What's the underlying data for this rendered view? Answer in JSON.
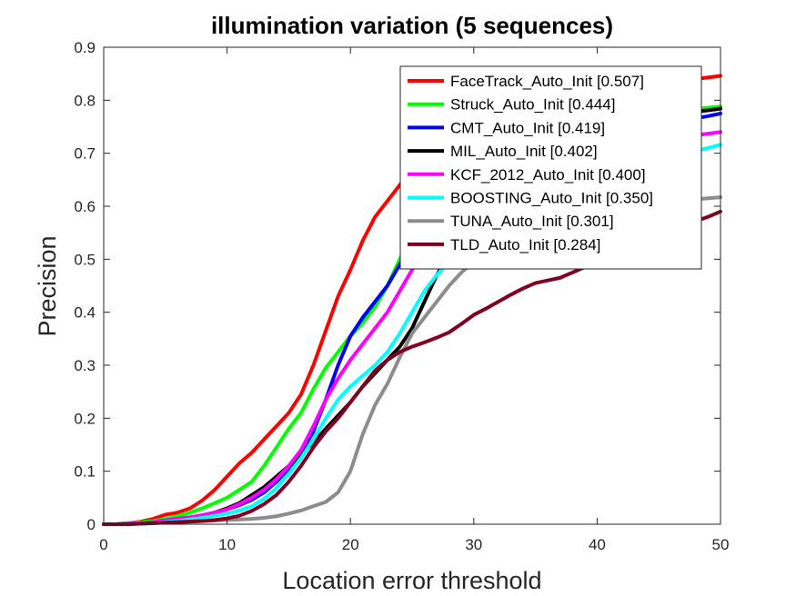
{
  "chart_data": {
    "type": "line",
    "title": "illumination variation (5 sequences)",
    "xlabel": "Location error threshold",
    "ylabel": "Precision",
    "xlim": [
      0,
      50
    ],
    "ylim": [
      0,
      0.9
    ],
    "xticks": [
      "0",
      "10",
      "20",
      "30",
      "40",
      "50"
    ],
    "yticks": [
      "0",
      "0.1",
      "0.2",
      "0.3",
      "0.4",
      "0.5",
      "0.6",
      "0.7",
      "0.8",
      "0.9"
    ],
    "legend_position": "top-right",
    "grid": false,
    "x": [
      0,
      1,
      2,
      3,
      4,
      5,
      6,
      7,
      8,
      9,
      10,
      11,
      12,
      13,
      14,
      15,
      16,
      17,
      18,
      19,
      20,
      21,
      22,
      23,
      24,
      25,
      26,
      27,
      28,
      29,
      30,
      31,
      32,
      33,
      34,
      35,
      36,
      37,
      38,
      39,
      40,
      41,
      42,
      43,
      44,
      45,
      46,
      47,
      48,
      49,
      50
    ],
    "series": [
      {
        "name": "FaceTrack_Auto_Init [0.507]",
        "color": "#ff0000",
        "values": [
          0,
          0,
          0.002,
          0.005,
          0.01,
          0.018,
          0.022,
          0.03,
          0.045,
          0.065,
          0.09,
          0.115,
          0.135,
          0.16,
          0.185,
          0.21,
          0.245,
          0.3,
          0.365,
          0.43,
          0.48,
          0.535,
          0.58,
          0.61,
          0.64,
          0.665,
          0.685,
          0.7,
          0.715,
          0.725,
          0.735,
          0.745,
          0.755,
          0.762,
          0.77,
          0.778,
          0.785,
          0.79,
          0.796,
          0.802,
          0.808,
          0.813,
          0.818,
          0.822,
          0.826,
          0.83,
          0.834,
          0.837,
          0.84,
          0.843,
          0.846
        ]
      },
      {
        "name": "Struck_Auto_Init [0.444]",
        "color": "#00ff00",
        "values": [
          0,
          0,
          0.002,
          0.004,
          0.006,
          0.01,
          0.015,
          0.022,
          0.03,
          0.04,
          0.05,
          0.065,
          0.08,
          0.11,
          0.145,
          0.18,
          0.21,
          0.255,
          0.295,
          0.325,
          0.355,
          0.38,
          0.41,
          0.45,
          0.5,
          0.545,
          0.58,
          0.605,
          0.625,
          0.645,
          0.66,
          0.675,
          0.69,
          0.7,
          0.71,
          0.72,
          0.728,
          0.736,
          0.744,
          0.75,
          0.755,
          0.76,
          0.765,
          0.769,
          0.772,
          0.775,
          0.778,
          0.781,
          0.783,
          0.786,
          0.788
        ]
      },
      {
        "name": "CMT_Auto_Init [0.419]",
        "color": "#0000ff",
        "values": [
          0,
          0,
          0,
          0.002,
          0.004,
          0.007,
          0.01,
          0.013,
          0.017,
          0.022,
          0.028,
          0.036,
          0.046,
          0.06,
          0.08,
          0.105,
          0.135,
          0.175,
          0.235,
          0.3,
          0.355,
          0.39,
          0.42,
          0.45,
          0.49,
          0.53,
          0.57,
          0.6,
          0.62,
          0.635,
          0.648,
          0.66,
          0.67,
          0.68,
          0.69,
          0.698,
          0.706,
          0.713,
          0.72,
          0.726,
          0.732,
          0.737,
          0.742,
          0.746,
          0.75,
          0.754,
          0.758,
          0.762,
          0.766,
          0.77,
          0.775
        ]
      },
      {
        "name": "MIL_Auto_Init [0.402]",
        "color": "#000000",
        "values": [
          0,
          0,
          0.001,
          0.002,
          0.004,
          0.006,
          0.009,
          0.012,
          0.016,
          0.022,
          0.03,
          0.04,
          0.055,
          0.07,
          0.09,
          0.11,
          0.13,
          0.155,
          0.18,
          0.205,
          0.23,
          0.26,
          0.285,
          0.31,
          0.335,
          0.37,
          0.42,
          0.47,
          0.51,
          0.54,
          0.565,
          0.59,
          0.61,
          0.628,
          0.645,
          0.66,
          0.675,
          0.688,
          0.7,
          0.712,
          0.722,
          0.732,
          0.742,
          0.75,
          0.757,
          0.763,
          0.769,
          0.774,
          0.778,
          0.781,
          0.784
        ]
      },
      {
        "name": "KCF_2012_Auto_Init [0.400]",
        "color": "#ff00ff",
        "values": [
          0,
          0,
          0.001,
          0.002,
          0.004,
          0.007,
          0.01,
          0.013,
          0.017,
          0.022,
          0.028,
          0.038,
          0.05,
          0.065,
          0.085,
          0.11,
          0.14,
          0.185,
          0.235,
          0.275,
          0.31,
          0.34,
          0.37,
          0.4,
          0.44,
          0.48,
          0.52,
          0.555,
          0.58,
          0.6,
          0.615,
          0.628,
          0.64,
          0.65,
          0.66,
          0.668,
          0.676,
          0.684,
          0.69,
          0.696,
          0.702,
          0.707,
          0.712,
          0.716,
          0.72,
          0.724,
          0.728,
          0.731,
          0.734,
          0.737,
          0.74
        ]
      },
      {
        "name": "BOOSTING_Auto_Init [0.350]",
        "color": "#00ffff",
        "values": [
          0,
          0,
          0,
          0.001,
          0.002,
          0.004,
          0.006,
          0.009,
          0.012,
          0.016,
          0.02,
          0.026,
          0.034,
          0.048,
          0.068,
          0.095,
          0.125,
          0.16,
          0.2,
          0.235,
          0.26,
          0.28,
          0.3,
          0.325,
          0.36,
          0.4,
          0.44,
          0.47,
          0.495,
          0.515,
          0.535,
          0.55,
          0.565,
          0.578,
          0.59,
          0.602,
          0.612,
          0.622,
          0.632,
          0.642,
          0.65,
          0.658,
          0.666,
          0.673,
          0.68,
          0.686,
          0.692,
          0.698,
          0.704,
          0.71,
          0.716
        ]
      },
      {
        "name": "TUNA_Auto_Init [0.301]",
        "color": "#8c8c8c",
        "values": [
          0,
          0,
          0,
          0.001,
          0.002,
          0.003,
          0.004,
          0.005,
          0.006,
          0.007,
          0.008,
          0.009,
          0.01,
          0.012,
          0.015,
          0.02,
          0.026,
          0.034,
          0.042,
          0.06,
          0.1,
          0.17,
          0.225,
          0.265,
          0.315,
          0.36,
          0.39,
          0.42,
          0.45,
          0.475,
          0.495,
          0.51,
          0.525,
          0.538,
          0.548,
          0.556,
          0.562,
          0.568,
          0.574,
          0.58,
          0.585,
          0.59,
          0.595,
          0.599,
          0.603,
          0.606,
          0.609,
          0.611,
          0.613,
          0.615,
          0.617
        ]
      },
      {
        "name": "TLD_Auto_Init [0.284]",
        "color": "#800020",
        "values": [
          0,
          0,
          0,
          0.001,
          0.002,
          0.003,
          0.004,
          0.005,
          0.006,
          0.008,
          0.011,
          0.016,
          0.025,
          0.038,
          0.055,
          0.08,
          0.11,
          0.145,
          0.175,
          0.2,
          0.23,
          0.26,
          0.29,
          0.31,
          0.325,
          0.335,
          0.343,
          0.352,
          0.362,
          0.378,
          0.395,
          0.407,
          0.42,
          0.433,
          0.445,
          0.455,
          0.46,
          0.465,
          0.475,
          0.485,
          0.495,
          0.505,
          0.515,
          0.525,
          0.535,
          0.545,
          0.555,
          0.565,
          0.572,
          0.58,
          0.59
        ]
      }
    ]
  }
}
